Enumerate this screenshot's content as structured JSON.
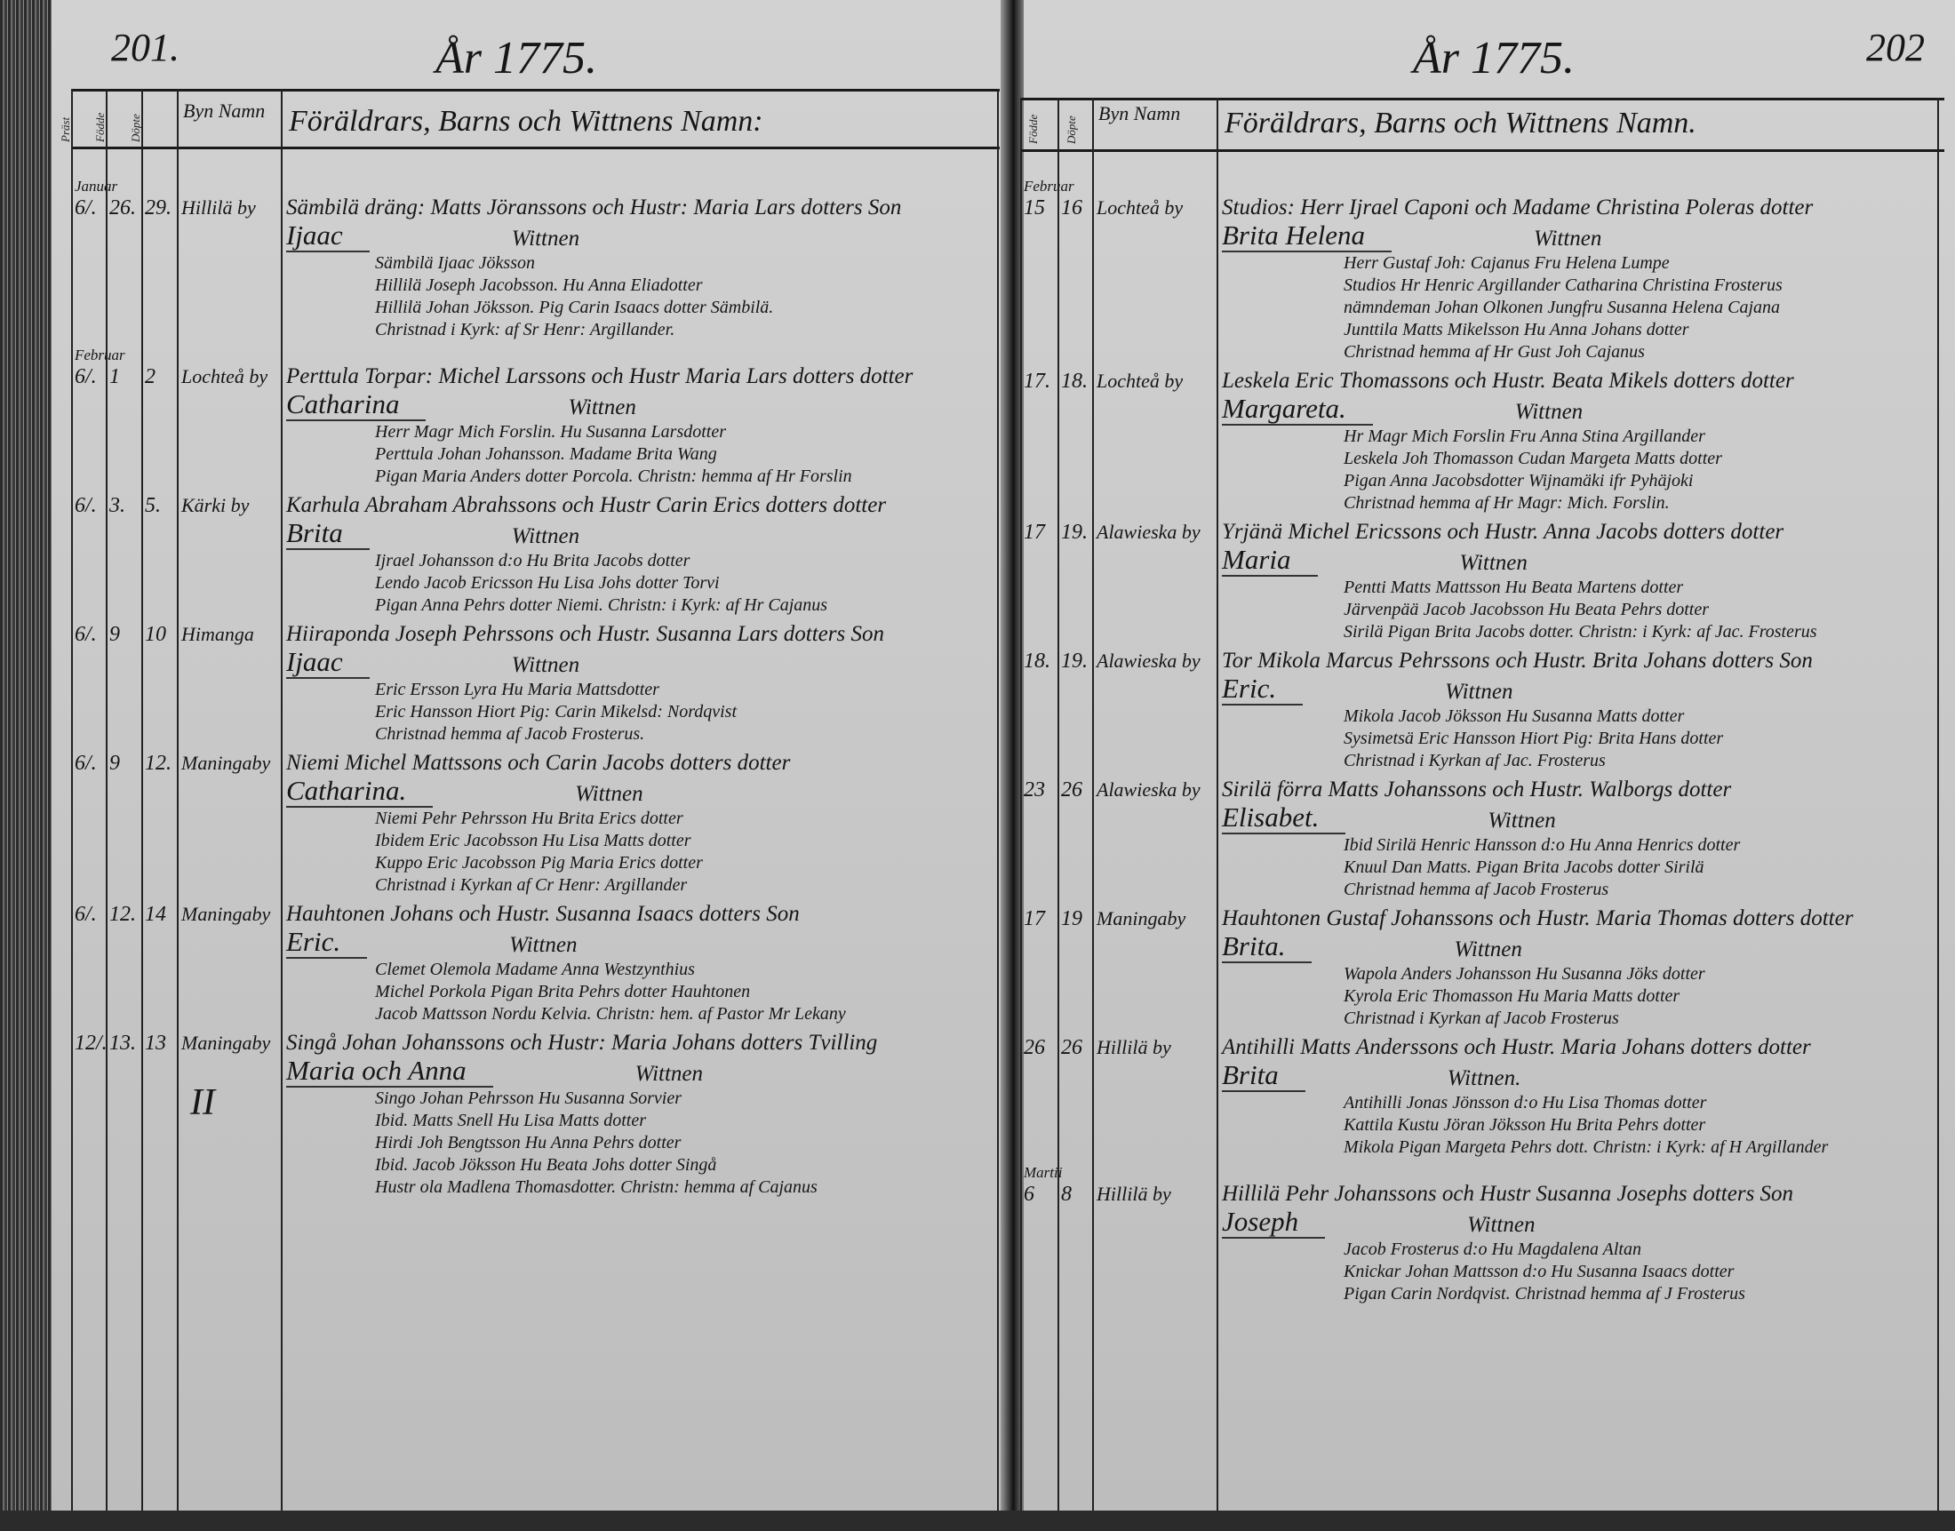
{
  "left_page": {
    "page_number": "201.",
    "title": "År 1775.",
    "header": {
      "col_priest": "Präst",
      "col_born": "Födde",
      "col_baptized": "Döpte",
      "col_village": "Byn Namn",
      "col_names": "Föräldrars, Barns och Wittnens Namn:"
    },
    "entries": [
      {
        "month": "Januar",
        "priest": "6/.",
        "born": "26.",
        "baptized": "29.",
        "village": "Hillilä by",
        "parents": "Sämbilä dräng: Matts Jöranssons och Hustr: Maria Lars dotters Son",
        "child": "Ijaac",
        "witness_label": "Wittnen",
        "witnesses": [
          "Sämbilä Ijaac Jöksson",
          "Hillilä Joseph Jacobsson.   Hu Anna Eliadotter",
          "Hillilä Johan Jöksson.   Pig Carin Isaacs dotter Sämbilä.",
          "Christnad i Kyrk: af Sr Henr: Argillander."
        ]
      },
      {
        "month": "Februar",
        "priest": "6/.",
        "born": "1",
        "baptized": "2",
        "village": "Lochteå by",
        "parents": "Perttula Torpar: Michel Larssons och Hustr Maria Lars dotters dotter",
        "child": "Catharina",
        "witness_label": "Wittnen",
        "witnesses": [
          "Herr Magr Mich Forslin.   Hu Susanna Larsdotter",
          "Perttula Johan Johansson.   Madame Brita Wang",
          "Pigan Maria Anders dotter Porcola. Christn: hemma af Hr Forslin"
        ]
      },
      {
        "priest": "6/.",
        "born": "3.",
        "baptized": "5.",
        "village": "Kärki by",
        "parents": "Karhula Abraham Abrahssons och Hustr Carin Erics dotters dotter",
        "child": "Brita",
        "witness_label": "Wittnen",
        "witnesses": [
          "Ijrael Johansson d:o  Hu Brita Jacobs dotter",
          "Lendo Jacob Ericsson  Hu Lisa Johs dotter Torvi",
          "Pigan Anna Pehrs dotter Niemi. Christn: i Kyrk: af Hr Cajanus"
        ]
      },
      {
        "priest": "6/.",
        "born": "9",
        "baptized": "10",
        "village": "Himanga",
        "parents": "Hiiraponda Joseph Pehrssons och Hustr. Susanna Lars dotters Son",
        "child": "Ijaac",
        "witness_label": "Wittnen",
        "witnesses": [
          "Eric Ersson Lyra  Hu Maria Mattsdotter",
          "Eric Hansson Hiort  Pig: Carin Mikelsd: Nordqvist",
          "Christnad hemma af Jacob Frosterus."
        ]
      },
      {
        "priest": "6/.",
        "born": "9",
        "baptized": "12.",
        "village": "Maningaby",
        "parents": "Niemi Michel Mattssons och Carin Jacobs dotters dotter",
        "child": "Catharina.",
        "witness_label": "Wittnen",
        "witnesses": [
          "Niemi Pehr Pehrsson  Hu Brita Erics dotter",
          "Ibidem Eric Jacobsson  Hu Lisa Matts dotter",
          "Kuppo Eric Jacobsson  Pig Maria Erics dotter",
          "Christnad i Kyrkan af Cr Henr: Argillander"
        ]
      },
      {
        "priest": "6/.",
        "born": "12.",
        "baptized": "14",
        "village": "Maningaby",
        "parents": "Hauhtonen Johans och Hustr. Susanna Isaacs dotters Son",
        "child": "Eric.",
        "witness_label": "Wittnen",
        "witnesses": [
          "Clemet Olemola   Madame Anna Westzynthius",
          "Michel Porkola   Pigan Brita Pehrs dotter Hauhtonen",
          "Jacob Mattsson Nordu Kelvia. Christn: hem. af Pastor Mr Lekany"
        ]
      },
      {
        "priest": "12/.",
        "born": "13.",
        "baptized": "13",
        "village": "Maningaby",
        "parents": "Singå Johan Johanssons och Hustr: Maria Johans dotters Tvilling",
        "child": "Maria och Anna",
        "witness_label": "Wittnen",
        "note": "II",
        "witnesses": [
          "Singo Johan Pehrsson        Hu Susanna Sorvier",
          "Ibid. Matts Snell        Hu Lisa Matts dotter",
          "Hirdi Joh Bengtsson        Hu Anna Pehrs dotter",
          "Ibid. Jacob Jöksson        Hu Beata Johs dotter Singå",
          "Hustr ola Madlena Thomasdotter. Christn: hemma af Cajanus"
        ]
      }
    ]
  },
  "right_page": {
    "page_number": "202",
    "title": "År 1775.",
    "header": {
      "col_born": "Födde",
      "col_baptized": "Döpte",
      "col_village": "Byn Namn",
      "col_names": "Föräldrars, Barns och Wittnens Namn."
    },
    "entries": [
      {
        "month": "Februar",
        "born": "15",
        "baptized": "16",
        "village": "Lochteå by",
        "parents": "Studios: Herr Ijrael Caponi och Madame Christina Poleras dotter",
        "child": "Brita Helena",
        "witness_label": "Wittnen",
        "witnesses": [
          "Herr Gustaf Joh: Cajanus   Fru Helena Lumpe",
          "Studios Hr Henric Argillander   Catharina Christina Frosterus",
          "nämndeman Johan Olkonen   Jungfru Susanna Helena Cajana",
          "Junttila Matts Mikelsson   Hu Anna Johans dotter",
          "Christnad hemma af Hr Gust Joh Cajanus"
        ]
      },
      {
        "born": "17.",
        "baptized": "18.",
        "village": "Lochteå by",
        "parents": "Leskela Eric Thomassons och Hustr. Beata Mikels dotters dotter",
        "child": "Margareta.",
        "witness_label": "Wittnen",
        "witnesses": [
          "Hr Magr Mich Forslin   Fru Anna Stina Argillander",
          "Leskela Joh Thomasson   Cudan Margeta Matts dotter",
          "Pigan Anna Jacobsdotter Wijnamäki ifr Pyhäjoki",
          "Christnad hemma af Hr Magr: Mich. Forslin."
        ]
      },
      {
        "born": "17",
        "baptized": "19.",
        "village": "Alawieska by",
        "parents": "Yrjänä  Michel Ericssons och Hustr. Anna Jacobs dotters dotter",
        "child": "Maria",
        "witness_label": "Wittnen",
        "witnesses": [
          "Pentti Matts Mattsson  Hu Beata Martens dotter",
          "Järvenpää Jacob Jacobsson  Hu Beata Pehrs dotter",
          "Sirilä Pigan Brita Jacobs dotter. Christn: i Kyrk: af Jac. Frosterus"
        ]
      },
      {
        "born": "18.",
        "baptized": "19.",
        "village": "Alawieska by",
        "parents": "Tor Mikola Marcus Pehrssons och Hustr. Brita Johans dotters Son",
        "child": "Eric.",
        "witness_label": "Wittnen",
        "witnesses": [
          "Mikola Jacob Jöksson  Hu Susanna Matts dotter",
          "Sysimetsä Eric Hansson Hiort  Pig: Brita Hans dotter",
          "Christnad i Kyrkan af Jac. Frosterus"
        ]
      },
      {
        "born": "23",
        "baptized": "26",
        "village": "Alawieska by",
        "parents": "Sirilä förra Matts Johanssons och Hustr. Walborgs dotter",
        "child": "Elisabet.",
        "witness_label": "Wittnen",
        "witnesses": [
          "Ibid Sirilä Henric Hansson d:o Hu Anna Henrics dotter",
          "Knuul Dan Matts. Pigan Brita Jacobs dotter Sirilä",
          "Christnad hemma af Jacob Frosterus"
        ]
      },
      {
        "born": "17",
        "baptized": "19",
        "village": "Maningaby",
        "parents": "Hauhtonen Gustaf Johanssons och Hustr. Maria Thomas dotters dotter",
        "child": "Brita.",
        "witness_label": "Wittnen",
        "witnesses": [
          "Wapola Anders Johansson  Hu Susanna Jöks dotter",
          "Kyrola Eric Thomasson  Hu Maria Matts dotter",
          "Christnad i Kyrkan af Jacob Frosterus"
        ]
      },
      {
        "born": "26",
        "baptized": "26",
        "village": "Hillilä by",
        "parents": "Antihilli Matts Anderssons och Hustr. Maria Johans dotters dotter",
        "child": "Brita",
        "witness_label": "Wittnen.",
        "witnesses": [
          "Antihilli Jonas Jönsson d:o Hu Lisa Thomas dotter",
          "Kattila Kustu Jöran Jöksson  Hu Brita Pehrs dotter",
          "Mikola Pigan Margeta Pehrs dott. Christn: i Kyrk: af H Argillander"
        ]
      },
      {
        "month": "Martii",
        "born": "6",
        "baptized": "8",
        "village": "Hillilä by",
        "parents": "Hillilä Pehr Johanssons och Hustr Susanna Josephs dotters Son",
        "child": "Joseph",
        "witness_label": "Wittnen",
        "witnesses": [
          "Jacob Frosterus d:o Hu Magdalena Altan",
          "Knickar Johan Mattsson d:o Hu Susanna Isaacs dotter",
          "Pigan Carin Nordqvist. Christnad hemma af J Frosterus"
        ]
      }
    ]
  }
}
